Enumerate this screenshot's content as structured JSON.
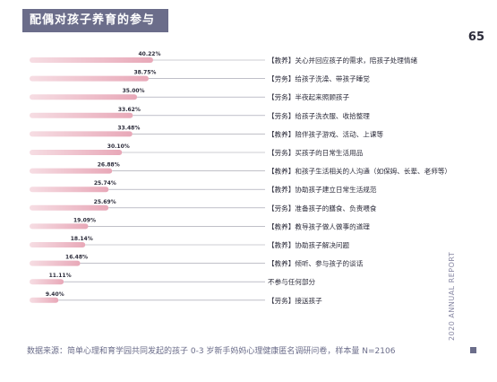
{
  "header": {
    "title": "配偶对孩子养育的参与",
    "page_number": "65"
  },
  "footnote": "数据来源：简单心理和育学园共同发起的孩子 0-3 岁新手妈妈心理健康匿名调研问卷，样本量 N=2106",
  "side_label": "2020 ANNUAL REPORT",
  "colors": {
    "bar_start": "#f6dde3",
    "bar_end": "#e8a8b8",
    "line": "#9a9aa8",
    "title_bg": "#6b6d8a"
  },
  "chart_data": {
    "type": "bar",
    "orientation": "horizontal",
    "xlim": [
      0,
      40.22
    ],
    "categories": [
      "【教养】关心并回应孩子的需求，陪孩子处理情绪",
      "【劳务】给孩子洗澡、带孩子睡觉",
      "【劳务】半夜起来照顾孩子",
      "【劳务】给孩子洗衣服、收拾整理",
      "【教养】陪伴孩子游戏、活动、上课等",
      "【劳务】买孩子的日常生活用品",
      "【教养】和孩子生活相关的人沟通（如保姆、长辈、老师等）",
      "【教养】协助孩子建立日常生活规范",
      "【劳务】准备孩子的膳食、负责喂食",
      "【教养】教导孩子做人做事的道理",
      "【教养】协助孩子解决问题",
      "【教养】倾听、参与孩子的谈话",
      "不参与任何部分",
      "【劳务】接送孩子"
    ],
    "values": [
      40.22,
      38.75,
      35.0,
      33.62,
      33.48,
      30.1,
      26.88,
      25.74,
      25.69,
      19.09,
      18.14,
      16.48,
      11.11,
      9.4
    ],
    "value_labels": [
      "40.22%",
      "38.75%",
      "35.00%",
      "33.62%",
      "33.48%",
      "30.10%",
      "26.88%",
      "25.74%",
      "25.69%",
      "19.09%",
      "18.14%",
      "16.48%",
      "11.11%",
      "9.40%"
    ]
  }
}
